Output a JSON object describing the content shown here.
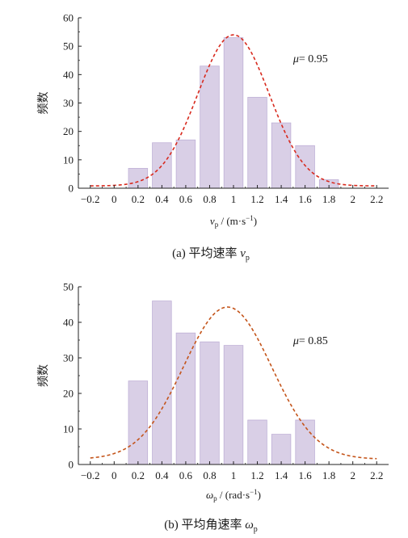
{
  "chart_data": [
    {
      "type": "bar",
      "panel": "(a)",
      "caption_text": "平均速率",
      "caption_symbol": "v",
      "caption_sub": "p",
      "xlabel_symbol": "v",
      "xlabel_sub": "p",
      "xlabel_unit": "/ (m·s",
      "xlabel_unit_sup": "−1",
      "xlabel_unit_end": ")",
      "ylabel": "频数",
      "annotation_symbol": "μ",
      "annotation_value": "= 0.95",
      "xlim": [
        -0.3,
        2.3
      ],
      "ylim": [
        0,
        60
      ],
      "xticks": [
        "−0.2",
        "0",
        "0.2",
        "0.4",
        "0.6",
        "0.8",
        "1",
        "1.2",
        "1.4",
        "1.6",
        "1.8",
        "2",
        "2.2"
      ],
      "xtick_values": [
        -0.2,
        0,
        0.2,
        0.4,
        0.6,
        0.8,
        1,
        1.2,
        1.4,
        1.6,
        1.8,
        2,
        2.2
      ],
      "yticks": [
        "0",
        "10",
        "20",
        "30",
        "40",
        "50",
        "60"
      ],
      "ytick_values": [
        0,
        10,
        20,
        30,
        40,
        50,
        60
      ],
      "bars": [
        {
          "x": 0.2,
          "value": 7
        },
        {
          "x": 0.4,
          "value": 16
        },
        {
          "x": 0.6,
          "value": 17
        },
        {
          "x": 0.8,
          "value": 43
        },
        {
          "x": 1.0,
          "value": 53
        },
        {
          "x": 1.2,
          "value": 32
        },
        {
          "x": 1.4,
          "value": 23
        },
        {
          "x": 1.6,
          "value": 15
        },
        {
          "x": 1.8,
          "value": 3
        }
      ],
      "bar_width": 0.16,
      "fit_curve": {
        "type": "gaussian",
        "peak": 54,
        "center": 1.0,
        "sigma": 0.3,
        "baseline": 0.8
      },
      "colors": {
        "bar_fill": "#d9cfe6",
        "bar_stroke": "#bfb0d6",
        "curve": "#d82a1e"
      }
    },
    {
      "type": "bar",
      "panel": "(b)",
      "caption_text": "平均角速率",
      "caption_symbol": "ω",
      "caption_sub": "p",
      "xlabel_symbol": "ω",
      "xlabel_sub": "p",
      "xlabel_unit": "/ (rad·s",
      "xlabel_unit_sup": "−1",
      "xlabel_unit_end": ")",
      "ylabel": "频数",
      "annotation_symbol": "μ",
      "annotation_value": "= 0.85",
      "xlim": [
        -0.3,
        2.3
      ],
      "ylim": [
        0,
        50
      ],
      "xticks": [
        "−0.2",
        "0",
        "0.2",
        "0.4",
        "0.6",
        "0.8",
        "1",
        "1.2",
        "1.4",
        "1.6",
        "1.8",
        "2",
        "2.2"
      ],
      "xtick_values": [
        -0.2,
        0,
        0.2,
        0.4,
        0.6,
        0.8,
        1,
        1.2,
        1.4,
        1.6,
        1.8,
        2,
        2.2
      ],
      "yticks": [
        "0",
        "10",
        "20",
        "30",
        "40",
        "50"
      ],
      "ytick_values": [
        0,
        10,
        20,
        30,
        40,
        50
      ],
      "bars": [
        {
          "x": 0.2,
          "value": 23.5
        },
        {
          "x": 0.4,
          "value": 46
        },
        {
          "x": 0.6,
          "value": 37
        },
        {
          "x": 0.8,
          "value": 34.5
        },
        {
          "x": 1.0,
          "value": 33.5
        },
        {
          "x": 1.2,
          "value": 12.5
        },
        {
          "x": 1.4,
          "value": 8.5
        },
        {
          "x": 1.6,
          "value": 12.5
        }
      ],
      "bar_width": 0.16,
      "fit_curve": {
        "type": "gaussian",
        "peak": 44.3,
        "center": 0.95,
        "sigma": 0.37,
        "baseline": 1.5
      },
      "colors": {
        "bar_fill": "#d9cfe6",
        "bar_stroke": "#bfb0d6",
        "curve": "#c4541a"
      }
    }
  ]
}
